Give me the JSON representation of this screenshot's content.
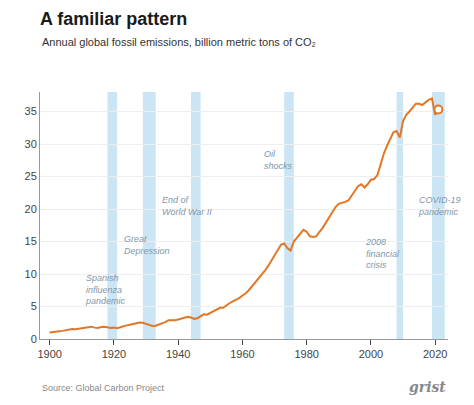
{
  "chart_data": {
    "type": "line",
    "title": "A familiar pattern",
    "subtitle": "Annual global fossil emissions, billion metric tons of CO₂",
    "source": "Source: Global Carbon Project",
    "watermark": "grist",
    "color": "#E07828",
    "grid": true,
    "x": [
      1900,
      1901,
      1902,
      1903,
      1904,
      1905,
      1906,
      1907,
      1908,
      1909,
      1910,
      1911,
      1912,
      1913,
      1914,
      1915,
      1916,
      1917,
      1918,
      1919,
      1920,
      1921,
      1922,
      1923,
      1924,
      1925,
      1926,
      1927,
      1928,
      1929,
      1930,
      1931,
      1932,
      1933,
      1934,
      1935,
      1936,
      1937,
      1938,
      1939,
      1940,
      1941,
      1942,
      1943,
      1944,
      1945,
      1946,
      1947,
      1948,
      1949,
      1950,
      1951,
      1952,
      1953,
      1954,
      1955,
      1956,
      1957,
      1958,
      1959,
      1960,
      1961,
      1962,
      1963,
      1964,
      1965,
      1966,
      1967,
      1968,
      1969,
      1970,
      1971,
      1972,
      1973,
      1974,
      1975,
      1976,
      1977,
      1978,
      1979,
      1980,
      1981,
      1982,
      1983,
      1984,
      1985,
      1986,
      1987,
      1988,
      1989,
      1990,
      1991,
      1992,
      1993,
      1994,
      1995,
      1996,
      1997,
      1998,
      1999,
      2000,
      2001,
      2002,
      2003,
      2004,
      2005,
      2006,
      2007,
      2008,
      2009,
      2010,
      2011,
      2012,
      2013,
      2014,
      2015,
      2016,
      2017,
      2018,
      2019,
      2020,
      2021
    ],
    "values": [
      1.0,
      1.1,
      1.15,
      1.2,
      1.25,
      1.35,
      1.45,
      1.55,
      1.5,
      1.6,
      1.7,
      1.75,
      1.85,
      1.9,
      1.75,
      1.7,
      1.85,
      1.9,
      1.8,
      1.7,
      1.75,
      1.65,
      1.8,
      2.0,
      2.1,
      2.2,
      2.35,
      2.45,
      2.55,
      2.5,
      2.3,
      2.1,
      2.0,
      2.05,
      2.2,
      2.4,
      2.6,
      2.9,
      2.85,
      2.9,
      3.0,
      3.1,
      3.3,
      3.4,
      3.3,
      3.1,
      3.2,
      3.55,
      3.8,
      3.75,
      4.0,
      4.3,
      4.5,
      4.8,
      4.8,
      5.2,
      5.5,
      5.8,
      6.0,
      6.3,
      6.7,
      7.0,
      7.5,
      8.1,
      8.7,
      9.2,
      9.9,
      10.5,
      11.2,
      12.0,
      13.0,
      13.8,
      14.5,
      14.7,
      14.0,
      13.6,
      15.0,
      15.6,
      16.2,
      16.8,
      16.5,
      15.8,
      15.7,
      15.8,
      16.5,
      17.1,
      17.9,
      18.7,
      19.7,
      20.3,
      20.8,
      20.9,
      21.1,
      21.3,
      22.0,
      22.7,
      23.5,
      23.8,
      23.3,
      23.8,
      24.5,
      24.6,
      25.2,
      26.8,
      28.5,
      29.7,
      30.7,
      31.8,
      32.0,
      31.0,
      33.5,
      34.5,
      35.0,
      35.7,
      36.2,
      36.2,
      36.0,
      36.4,
      36.8,
      37.0,
      34.5,
      35.3
    ],
    "shaded_regions": [
      {
        "xmin": 1918,
        "xmax": 1921,
        "color": "#cce5f5",
        "label": "Spanish\ninfluenza\npandemic",
        "x": 1910.5,
        "y": 10.5
      },
      {
        "xmin": 1929,
        "xmax": 1933,
        "color": "#cce5f5",
        "label": "Great\nDepression",
        "x": 1922.5,
        "y": 16.5
      },
      {
        "xmin": 1944,
        "xmax": 1947,
        "color": "#cce5f5",
        "label": "End of\nWorld War II",
        "x": 1934.5,
        "y": 22.5
      },
      {
        "xmin": 1973,
        "xmax": 1976,
        "color": "#cce5f5",
        "label": "Oil\nshocks",
        "x": 1966.0,
        "y": 29.5
      },
      {
        "xmin": 2008,
        "xmax": 2010,
        "color": "#cce5f5",
        "label": "2008\nfinancial\ncrisis",
        "x": 1997.5,
        "y": 16.0
      },
      {
        "xmin": 2019,
        "xmax": 2023,
        "color": "#cce5f5",
        "label": "COVID-19\npandemic",
        "x": 2014.0,
        "y": 22.5
      }
    ],
    "xlim": [
      1897,
      2024
    ],
    "ylim": [
      0,
      38
    ],
    "xticks": [
      1900,
      1920,
      1940,
      1960,
      1980,
      2000,
      2020
    ],
    "yticks": [
      0,
      5,
      10,
      15,
      20,
      25,
      30,
      35
    ]
  }
}
